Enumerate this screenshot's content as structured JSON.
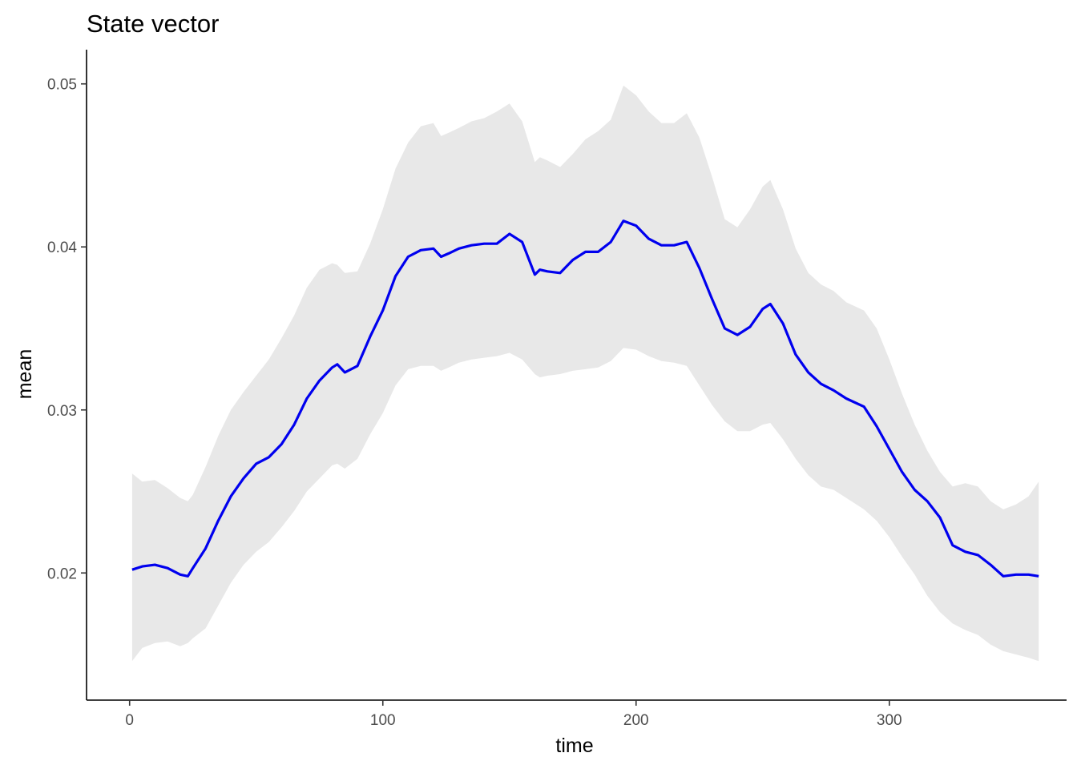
{
  "chart_data": {
    "type": "line",
    "title": "State vector",
    "xlabel": "time",
    "ylabel": "mean",
    "xlim": [
      -17,
      370
    ],
    "ylim": [
      0.0122,
      0.0521
    ],
    "xticks": [
      0,
      100,
      200,
      300
    ],
    "yticks": [
      0.02,
      0.03,
      0.04,
      0.05
    ],
    "xtick_labels": [
      "0",
      "100",
      "200",
      "300"
    ],
    "ytick_labels": [
      "0.02",
      "0.03",
      "0.04",
      "0.05"
    ],
    "grid": false,
    "legend": "none",
    "colors": {
      "line": "#0000ee",
      "band": "#e8e8e8"
    },
    "series": [
      {
        "x": [
          1,
          5,
          10,
          15,
          20,
          23,
          25,
          30,
          35,
          40,
          45,
          50,
          55,
          60,
          65,
          70,
          75,
          80,
          82,
          85,
          90,
          95,
          100,
          105,
          110,
          115,
          120,
          123,
          126,
          130,
          135,
          140,
          145,
          150,
          155,
          160,
          162,
          165,
          170,
          175,
          180,
          185,
          190,
          195,
          200,
          205,
          210,
          215,
          220,
          225,
          230,
          235,
          240,
          245,
          250,
          253,
          258,
          263,
          268,
          273,
          278,
          283,
          290,
          295,
          300,
          305,
          310,
          315,
          320,
          325,
          330,
          335,
          340,
          345,
          350,
          355,
          359
        ],
        "mean": [
          0.0202,
          0.0204,
          0.0205,
          0.0203,
          0.0199,
          0.0198,
          0.0203,
          0.0215,
          0.0232,
          0.0247,
          0.0258,
          0.0267,
          0.0271,
          0.0279,
          0.0291,
          0.0307,
          0.0318,
          0.0326,
          0.0328,
          0.0323,
          0.0327,
          0.0345,
          0.0361,
          0.0382,
          0.0394,
          0.0398,
          0.0399,
          0.0394,
          0.0396,
          0.0399,
          0.0401,
          0.0402,
          0.0402,
          0.0408,
          0.0403,
          0.0383,
          0.0386,
          0.0385,
          0.0384,
          0.0392,
          0.0397,
          0.0397,
          0.0403,
          0.0416,
          0.0413,
          0.0405,
          0.0401,
          0.0401,
          0.0403,
          0.0387,
          0.0368,
          0.035,
          0.0346,
          0.0351,
          0.0362,
          0.0365,
          0.0353,
          0.0334,
          0.0323,
          0.0316,
          0.0312,
          0.0307,
          0.0302,
          0.029,
          0.0276,
          0.0262,
          0.0251,
          0.0244,
          0.0234,
          0.0217,
          0.0213,
          0.0211,
          0.0205,
          0.0198,
          0.0199,
          0.0199,
          0.0198
        ],
        "lower": [
          0.0146,
          0.0154,
          0.0157,
          0.0158,
          0.0155,
          0.0157,
          0.016,
          0.0166,
          0.018,
          0.0194,
          0.0205,
          0.0213,
          0.0219,
          0.0228,
          0.0238,
          0.025,
          0.0258,
          0.0266,
          0.0267,
          0.0264,
          0.027,
          0.0285,
          0.0298,
          0.0315,
          0.0325,
          0.0327,
          0.0327,
          0.0324,
          0.0326,
          0.0329,
          0.0331,
          0.0332,
          0.0333,
          0.0335,
          0.0331,
          0.0322,
          0.032,
          0.0321,
          0.0322,
          0.0324,
          0.0325,
          0.0326,
          0.033,
          0.0338,
          0.0337,
          0.0333,
          0.033,
          0.0329,
          0.0327,
          0.0315,
          0.0303,
          0.0293,
          0.0287,
          0.0287,
          0.0291,
          0.0292,
          0.0282,
          0.027,
          0.026,
          0.0253,
          0.0251,
          0.0246,
          0.0239,
          0.0232,
          0.0222,
          0.021,
          0.0199,
          0.0186,
          0.0176,
          0.0169,
          0.0165,
          0.0162,
          0.0156,
          0.0152,
          0.015,
          0.0148,
          0.0146
        ],
        "upper": [
          0.0261,
          0.0256,
          0.0257,
          0.0252,
          0.0246,
          0.0244,
          0.0248,
          0.0265,
          0.0284,
          0.03,
          0.0311,
          0.0321,
          0.0331,
          0.0344,
          0.0358,
          0.0375,
          0.0386,
          0.039,
          0.0389,
          0.0384,
          0.0385,
          0.0402,
          0.0423,
          0.0448,
          0.0464,
          0.0474,
          0.0476,
          0.0468,
          0.047,
          0.0473,
          0.0477,
          0.0479,
          0.0483,
          0.0488,
          0.0477,
          0.0452,
          0.0455,
          0.0453,
          0.0449,
          0.0457,
          0.0466,
          0.0471,
          0.0478,
          0.0499,
          0.0493,
          0.0483,
          0.0476,
          0.0476,
          0.0482,
          0.0467,
          0.0443,
          0.0417,
          0.0412,
          0.0423,
          0.0437,
          0.0441,
          0.0423,
          0.0399,
          0.0384,
          0.0377,
          0.0373,
          0.0366,
          0.0361,
          0.035,
          0.0331,
          0.031,
          0.0291,
          0.0275,
          0.0262,
          0.0253,
          0.0255,
          0.0253,
          0.0244,
          0.0239,
          0.0242,
          0.0247,
          0.0256
        ]
      }
    ]
  }
}
